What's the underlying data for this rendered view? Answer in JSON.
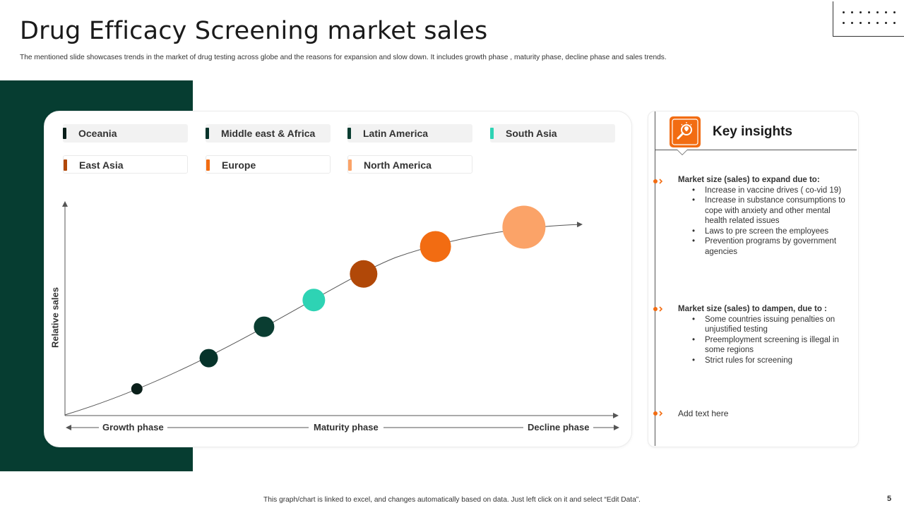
{
  "slide": {
    "title": "Drug Efficacy Screening market sales",
    "subtitle": "The mentioned  slide showcases trends in the market of drug testing across globe and the reasons for expansion and slow down. It includes growth phase , maturity phase, decline phase and sales trends.",
    "footer": "This graph/chart is linked to excel, and changes automatically based on data. Just left click on it and select “Edit Data”.",
    "page_number": "5"
  },
  "colors": {
    "dark_green": "#063d31",
    "accent_orange": "#f26c12"
  },
  "chart_data": {
    "type": "scatter",
    "title": "",
    "xlabel": "",
    "ylabel": "Relative sales",
    "x_phases": [
      "Growth phase",
      "Maturity phase",
      "Decline phase"
    ],
    "series": [
      {
        "name": "Oceania",
        "color": "#0a1f1a",
        "x": 1.3,
        "y": 4.0,
        "size": 1
      },
      {
        "name": "Middle east & Africa",
        "color": "#06332a",
        "x": 2.6,
        "y": 8.6,
        "size": 2
      },
      {
        "name": "Latin America",
        "color": "#0a3d31",
        "x": 3.6,
        "y": 13.3,
        "size": 2.3
      },
      {
        "name": "South Asia",
        "color": "#2ed3b4",
        "x": 4.5,
        "y": 17.3,
        "size": 2.6
      },
      {
        "name": "East Asia",
        "color": "#b14808",
        "x": 5.4,
        "y": 21.2,
        "size": 3.3
      },
      {
        "name": "Europe",
        "color": "#f26c12",
        "x": 6.7,
        "y": 25.3,
        "size": 3.8
      },
      {
        "name": "North America",
        "color": "#fba368",
        "x": 8.3,
        "y": 28.2,
        "size": 5.5
      }
    ],
    "xlim": [
      0,
      10
    ],
    "ylim": [
      0,
      32
    ],
    "grid": false,
    "legend_position": "top"
  },
  "insights": {
    "title": "Key insights",
    "icon": "magnifier-bulb-icon",
    "items": [
      {
        "heading": "Market size (sales) to expand due to:",
        "bullets": [
          "Increase in vaccine drives ( co-vid 19)",
          "Increase in substance consumptions to cope with anxiety and other mental health related issues",
          "Laws to pre screen the employees",
          "Prevention programs by government agencies"
        ]
      },
      {
        "heading": "Market size (sales) to dampen, due to :",
        "bullets": [
          "Some countries issuing penalties on unjustified testing",
          "Preemployment screening is illegal in some regions",
          "Strict rules for screening"
        ]
      }
    ],
    "placeholder": "Add text here"
  }
}
